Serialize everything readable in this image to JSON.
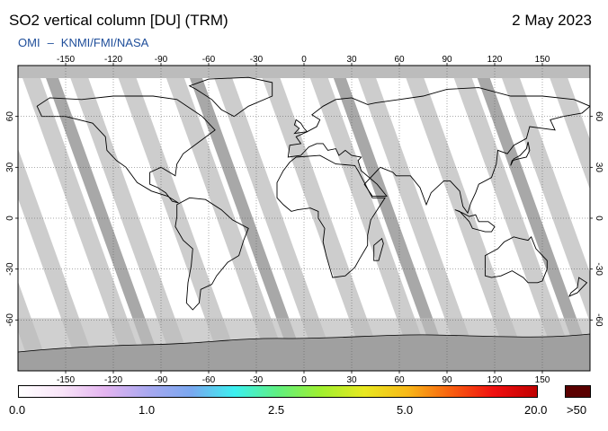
{
  "header": {
    "title": "SO2 vertical column [DU] (TRM)",
    "date": "2 May 2023",
    "credit_left": "OMI",
    "credit_sep": "–",
    "credit_right": "KNMI/FMI/NASA"
  },
  "map": {
    "projection": "equirectangular",
    "lon_range": [
      -180,
      180
    ],
    "lat_range": [
      -90,
      90
    ],
    "lon_ticks": [
      "-150",
      "-120",
      "-90",
      "-60",
      "-30",
      "0",
      "30",
      "60",
      "90",
      "120",
      "150"
    ],
    "lat_ticks": [
      "60",
      "30",
      "0",
      "-30",
      "-60"
    ],
    "grid": true,
    "colors": {
      "background": "#ffffff",
      "no_data_band": "#cdcdcd",
      "gap_band": "#a8a8a8",
      "antarctica": "#a0a0a0",
      "polar_cap": "#bcbcbc",
      "coastline": "#000000"
    }
  },
  "colorbar": {
    "labels": [
      "0.0",
      "1.0",
      "2.5",
      "5.0",
      "20.0",
      ">50"
    ],
    "label_values": [
      0.0,
      1.0,
      2.5,
      5.0,
      20.0,
      50
    ],
    "stops": [
      "#ffffff",
      "#f8e4f8",
      "#e4b4f0",
      "#a8a8f0",
      "#7aa8f0",
      "#3cf0f0",
      "#60f080",
      "#a0f030",
      "#e8e820",
      "#f8b818",
      "#f86010",
      "#f01010",
      "#c00000"
    ],
    "overflow_color": "#5a0000"
  }
}
